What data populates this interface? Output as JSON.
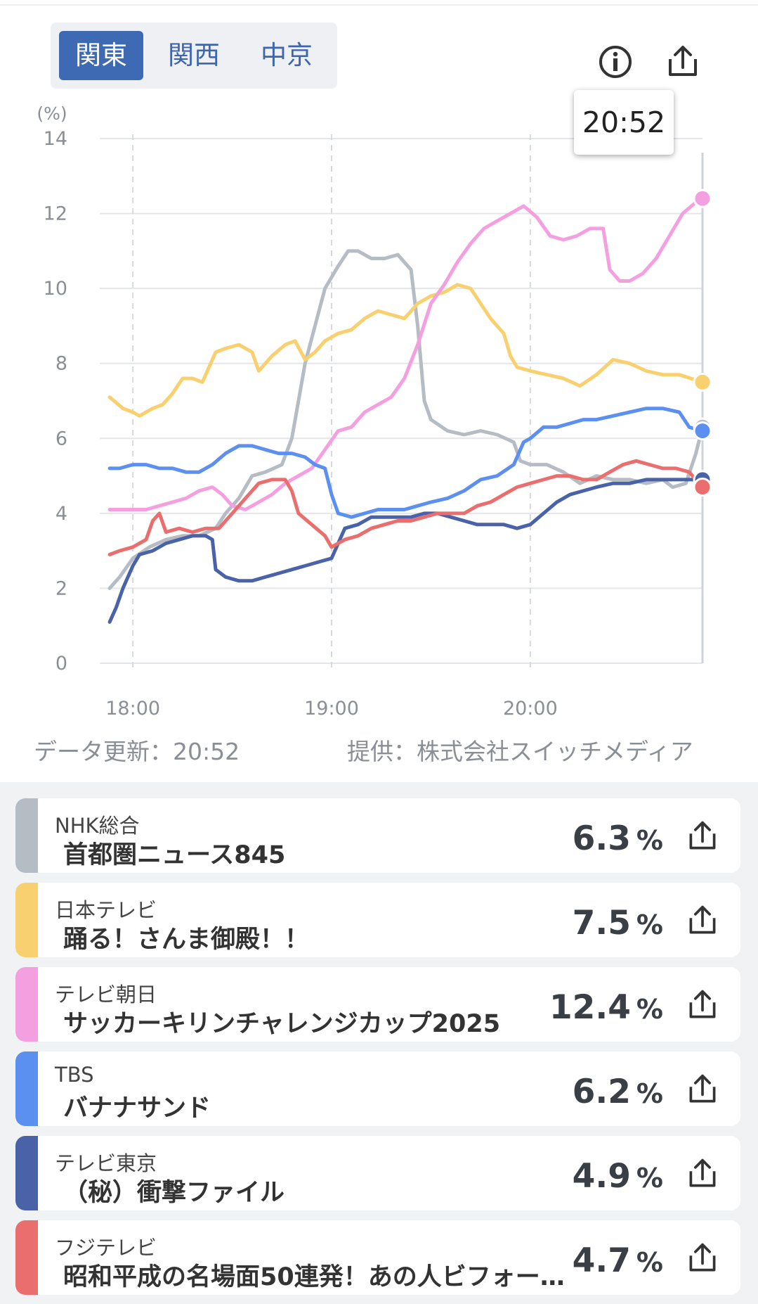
{
  "region_tabs": [
    {
      "label": "関東",
      "active": true
    },
    {
      "label": "関西",
      "active": false
    },
    {
      "label": "中京",
      "active": false
    }
  ],
  "icons": {
    "info": "info-icon",
    "share": "share-icon"
  },
  "tooltip": {
    "time": "20:52"
  },
  "chart_data": {
    "type": "line",
    "yunit": "(%)",
    "ylim": [
      0,
      14
    ],
    "yticks": [
      "0",
      "2",
      "4",
      "6",
      "8",
      "10",
      "12",
      "14"
    ],
    "xlim": [
      -10,
      172
    ],
    "xticks": [
      {
        "label": "18:00",
        "x": 0
      },
      {
        "label": "19:00",
        "x": 60
      },
      {
        "label": "20:00",
        "x": 120
      }
    ],
    "grid": true,
    "series": [
      {
        "color": "#b6bcc4",
        "points": [
          [
            -7,
            2.0
          ],
          [
            -4,
            2.3
          ],
          [
            0,
            2.8
          ],
          [
            5,
            3.1
          ],
          [
            10,
            3.3
          ],
          [
            15,
            3.4
          ],
          [
            20,
            3.4
          ],
          [
            25,
            3.6
          ],
          [
            28,
            4.0
          ],
          [
            32,
            4.4
          ],
          [
            36,
            5.0
          ],
          [
            40,
            5.1
          ],
          [
            45,
            5.3
          ],
          [
            48,
            6.0
          ],
          [
            50,
            7.0
          ],
          [
            52,
            8.0
          ],
          [
            55,
            9.0
          ],
          [
            58,
            10.0
          ],
          [
            62,
            10.6
          ],
          [
            65,
            11.0
          ],
          [
            68,
            11.0
          ],
          [
            72,
            10.8
          ],
          [
            76,
            10.8
          ],
          [
            80,
            10.9
          ],
          [
            84,
            10.5
          ],
          [
            86,
            9.0
          ],
          [
            88,
            7.0
          ],
          [
            90,
            6.5
          ],
          [
            95,
            6.2
          ],
          [
            100,
            6.1
          ],
          [
            105,
            6.2
          ],
          [
            110,
            6.1
          ],
          [
            115,
            5.9
          ],
          [
            117,
            5.4
          ],
          [
            120,
            5.3
          ],
          [
            125,
            5.3
          ],
          [
            130,
            5.1
          ],
          [
            135,
            4.8
          ],
          [
            140,
            5.0
          ],
          [
            145,
            4.9
          ],
          [
            150,
            4.9
          ],
          [
            155,
            4.8
          ],
          [
            160,
            4.9
          ],
          [
            163,
            4.7
          ],
          [
            167,
            4.8
          ],
          [
            170,
            5.6
          ],
          [
            172,
            6.3
          ]
        ]
      },
      {
        "color": "#f8d070",
        "points": [
          [
            -7,
            7.1
          ],
          [
            -3,
            6.8
          ],
          [
            0,
            6.7
          ],
          [
            2,
            6.6
          ],
          [
            6,
            6.8
          ],
          [
            9,
            6.9
          ],
          [
            12,
            7.2
          ],
          [
            15,
            7.6
          ],
          [
            18,
            7.6
          ],
          [
            21,
            7.5
          ],
          [
            25,
            8.3
          ],
          [
            28,
            8.4
          ],
          [
            32,
            8.5
          ],
          [
            36,
            8.3
          ],
          [
            38,
            7.8
          ],
          [
            42,
            8.2
          ],
          [
            46,
            8.5
          ],
          [
            49,
            8.6
          ],
          [
            52,
            8.1
          ],
          [
            55,
            8.3
          ],
          [
            58,
            8.6
          ],
          [
            62,
            8.8
          ],
          [
            66,
            8.9
          ],
          [
            70,
            9.2
          ],
          [
            74,
            9.4
          ],
          [
            78,
            9.3
          ],
          [
            82,
            9.2
          ],
          [
            86,
            9.6
          ],
          [
            90,
            9.8
          ],
          [
            94,
            9.9
          ],
          [
            98,
            10.1
          ],
          [
            102,
            10.0
          ],
          [
            105,
            9.6
          ],
          [
            108,
            9.2
          ],
          [
            112,
            8.8
          ],
          [
            114,
            8.2
          ],
          [
            116,
            7.9
          ],
          [
            120,
            7.8
          ],
          [
            125,
            7.7
          ],
          [
            130,
            7.6
          ],
          [
            135,
            7.4
          ],
          [
            140,
            7.7
          ],
          [
            145,
            8.1
          ],
          [
            150,
            8.0
          ],
          [
            155,
            7.8
          ],
          [
            160,
            7.7
          ],
          [
            165,
            7.7
          ],
          [
            172,
            7.5
          ]
        ]
      },
      {
        "color": "#f4a0e0",
        "points": [
          [
            -7,
            4.1
          ],
          [
            0,
            4.1
          ],
          [
            4,
            4.1
          ],
          [
            8,
            4.2
          ],
          [
            12,
            4.3
          ],
          [
            16,
            4.4
          ],
          [
            20,
            4.6
          ],
          [
            24,
            4.7
          ],
          [
            27,
            4.5
          ],
          [
            30,
            4.2
          ],
          [
            34,
            4.1
          ],
          [
            38,
            4.3
          ],
          [
            42,
            4.5
          ],
          [
            46,
            4.8
          ],
          [
            50,
            5.0
          ],
          [
            54,
            5.2
          ],
          [
            58,
            5.7
          ],
          [
            62,
            6.2
          ],
          [
            66,
            6.3
          ],
          [
            70,
            6.7
          ],
          [
            74,
            6.9
          ],
          [
            78,
            7.1
          ],
          [
            82,
            7.6
          ],
          [
            86,
            8.5
          ],
          [
            90,
            9.6
          ],
          [
            94,
            10.1
          ],
          [
            98,
            10.7
          ],
          [
            102,
            11.2
          ],
          [
            106,
            11.6
          ],
          [
            110,
            11.8
          ],
          [
            114,
            12.0
          ],
          [
            118,
            12.2
          ],
          [
            122,
            11.9
          ],
          [
            126,
            11.4
          ],
          [
            130,
            11.3
          ],
          [
            134,
            11.4
          ],
          [
            138,
            11.6
          ],
          [
            142,
            11.6
          ],
          [
            144,
            10.5
          ],
          [
            147,
            10.2
          ],
          [
            150,
            10.2
          ],
          [
            154,
            10.4
          ],
          [
            158,
            10.8
          ],
          [
            162,
            11.4
          ],
          [
            166,
            12.0
          ],
          [
            170,
            12.3
          ],
          [
            172,
            12.4
          ]
        ]
      },
      {
        "color": "#5b8ff0",
        "points": [
          [
            -7,
            5.2
          ],
          [
            -4,
            5.2
          ],
          [
            0,
            5.3
          ],
          [
            4,
            5.3
          ],
          [
            8,
            5.2
          ],
          [
            12,
            5.2
          ],
          [
            16,
            5.1
          ],
          [
            20,
            5.1
          ],
          [
            24,
            5.3
          ],
          [
            28,
            5.6
          ],
          [
            32,
            5.8
          ],
          [
            36,
            5.8
          ],
          [
            40,
            5.7
          ],
          [
            44,
            5.6
          ],
          [
            48,
            5.6
          ],
          [
            52,
            5.5
          ],
          [
            55,
            5.3
          ],
          [
            58,
            5.2
          ],
          [
            60,
            4.5
          ],
          [
            62,
            4.0
          ],
          [
            66,
            3.9
          ],
          [
            70,
            4.0
          ],
          [
            74,
            4.1
          ],
          [
            78,
            4.1
          ],
          [
            82,
            4.1
          ],
          [
            86,
            4.2
          ],
          [
            90,
            4.3
          ],
          [
            95,
            4.4
          ],
          [
            100,
            4.6
          ],
          [
            105,
            4.9
          ],
          [
            110,
            5.0
          ],
          [
            115,
            5.3
          ],
          [
            118,
            5.9
          ],
          [
            120,
            6.0
          ],
          [
            124,
            6.3
          ],
          [
            128,
            6.3
          ],
          [
            132,
            6.4
          ],
          [
            136,
            6.5
          ],
          [
            140,
            6.5
          ],
          [
            145,
            6.6
          ],
          [
            150,
            6.7
          ],
          [
            155,
            6.8
          ],
          [
            160,
            6.8
          ],
          [
            165,
            6.7
          ],
          [
            168,
            6.3
          ],
          [
            172,
            6.2
          ]
        ]
      },
      {
        "color": "#4a63a8",
        "points": [
          [
            -7,
            1.1
          ],
          [
            -5,
            1.5
          ],
          [
            -3,
            2.0
          ],
          [
            0,
            2.6
          ],
          [
            2,
            2.9
          ],
          [
            6,
            3.0
          ],
          [
            10,
            3.2
          ],
          [
            14,
            3.3
          ],
          [
            18,
            3.4
          ],
          [
            22,
            3.4
          ],
          [
            24,
            3.3
          ],
          [
            25,
            2.5
          ],
          [
            28,
            2.3
          ],
          [
            32,
            2.2
          ],
          [
            36,
            2.2
          ],
          [
            40,
            2.3
          ],
          [
            44,
            2.4
          ],
          [
            48,
            2.5
          ],
          [
            52,
            2.6
          ],
          [
            56,
            2.7
          ],
          [
            60,
            2.8
          ],
          [
            62,
            3.2
          ],
          [
            64,
            3.6
          ],
          [
            68,
            3.7
          ],
          [
            72,
            3.9
          ],
          [
            76,
            3.9
          ],
          [
            80,
            3.9
          ],
          [
            84,
            3.9
          ],
          [
            88,
            4.0
          ],
          [
            92,
            4.0
          ],
          [
            96,
            3.9
          ],
          [
            100,
            3.8
          ],
          [
            104,
            3.7
          ],
          [
            108,
            3.7
          ],
          [
            112,
            3.7
          ],
          [
            116,
            3.6
          ],
          [
            120,
            3.7
          ],
          [
            124,
            4.0
          ],
          [
            128,
            4.3
          ],
          [
            132,
            4.5
          ],
          [
            136,
            4.6
          ],
          [
            140,
            4.7
          ],
          [
            145,
            4.8
          ],
          [
            150,
            4.8
          ],
          [
            155,
            4.9
          ],
          [
            160,
            4.9
          ],
          [
            165,
            4.9
          ],
          [
            172,
            4.9
          ]
        ]
      },
      {
        "color": "#ea6e6e",
        "points": [
          [
            -7,
            2.9
          ],
          [
            -4,
            3.0
          ],
          [
            0,
            3.1
          ],
          [
            4,
            3.3
          ],
          [
            6,
            3.8
          ],
          [
            8,
            4.0
          ],
          [
            10,
            3.5
          ],
          [
            14,
            3.6
          ],
          [
            18,
            3.5
          ],
          [
            22,
            3.6
          ],
          [
            26,
            3.6
          ],
          [
            30,
            4.0
          ],
          [
            34,
            4.4
          ],
          [
            38,
            4.8
          ],
          [
            42,
            4.9
          ],
          [
            46,
            4.9
          ],
          [
            48,
            4.6
          ],
          [
            50,
            4.0
          ],
          [
            54,
            3.7
          ],
          [
            58,
            3.4
          ],
          [
            60,
            3.1
          ],
          [
            64,
            3.3
          ],
          [
            68,
            3.4
          ],
          [
            72,
            3.6
          ],
          [
            76,
            3.7
          ],
          [
            80,
            3.8
          ],
          [
            84,
            3.8
          ],
          [
            88,
            3.9
          ],
          [
            92,
            4.0
          ],
          [
            96,
            4.0
          ],
          [
            100,
            4.0
          ],
          [
            104,
            4.2
          ],
          [
            108,
            4.3
          ],
          [
            112,
            4.5
          ],
          [
            116,
            4.7
          ],
          [
            120,
            4.8
          ],
          [
            124,
            4.9
          ],
          [
            128,
            5.0
          ],
          [
            132,
            5.0
          ],
          [
            136,
            4.9
          ],
          [
            140,
            4.9
          ],
          [
            144,
            5.1
          ],
          [
            148,
            5.3
          ],
          [
            152,
            5.4
          ],
          [
            156,
            5.3
          ],
          [
            160,
            5.2
          ],
          [
            164,
            5.2
          ],
          [
            168,
            5.1
          ],
          [
            172,
            4.7
          ]
        ]
      }
    ]
  },
  "footer": {
    "updated": "データ更新：20:52",
    "provider": "提供：株式会社スイッチメディア"
  },
  "channels": [
    {
      "channel": "NHK総合",
      "program": "首都圏ニュース845",
      "value": "6.3",
      "unit": "%",
      "color": "#b6bcc4"
    },
    {
      "channel": "日本テレビ",
      "program": "踊る！さんま御殿！！",
      "value": "7.5",
      "unit": "%",
      "color": "#f8d070"
    },
    {
      "channel": "テレビ朝日",
      "program": "サッカーキリンチャレンジカップ2025",
      "value": "12.4",
      "unit": "%",
      "color": "#f4a0e0"
    },
    {
      "channel": "TBS",
      "program": "バナナサンド",
      "value": "6.2",
      "unit": "%",
      "color": "#5b8ff0"
    },
    {
      "channel": "テレビ東京",
      "program": "（秘）衝撃ファイル",
      "value": "4.9",
      "unit": "%",
      "color": "#4a63a8"
    },
    {
      "channel": "フジテレビ",
      "program": "昭和平成の名場面50連発！あの人ビフォー…",
      "value": "4.7",
      "unit": "%",
      "color": "#ea6e6e"
    }
  ]
}
